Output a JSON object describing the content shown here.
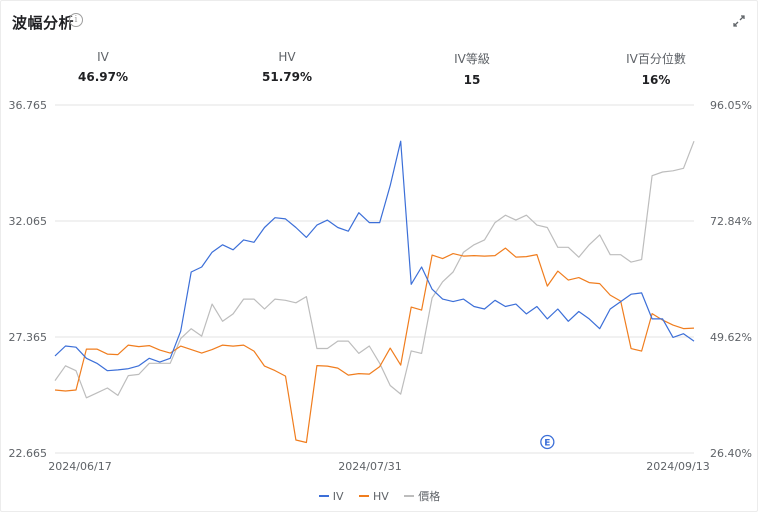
{
  "header": {
    "title": "波幅分析",
    "info_icon": "info-icon",
    "expand_icon": "expand-icon"
  },
  "metrics": [
    {
      "label": "IV",
      "value": "46.97%"
    },
    {
      "label": "HV",
      "value": "51.79%"
    },
    {
      "label": "IV等級",
      "value": "15"
    },
    {
      "label": "IV百分位數",
      "value": "16%"
    }
  ],
  "chart_data": {
    "type": "line",
    "left_axis": {
      "min": 22.665,
      "max": 36.765,
      "ticks": [
        "36.765",
        "32.065",
        "27.365",
        "22.665"
      ]
    },
    "right_axis": {
      "min": 26.4,
      "max": 96.05,
      "ticks": [
        "96.05%",
        "72.84%",
        "49.62%",
        "26.40%"
      ]
    },
    "x_ticks": [
      "2024/06/17",
      "2024/07/31",
      "2024/09/13"
    ],
    "earnings_marker": {
      "label": "E",
      "index": 47
    },
    "colors": {
      "IV": "#3c6fd8",
      "HV": "#f07d1e",
      "價格": "#bdbdbd"
    },
    "series": [
      {
        "name": "IV",
        "axis": "left",
        "values": [
          26.6,
          27.0,
          26.95,
          26.5,
          26.3,
          26.0,
          26.03,
          26.08,
          26.2,
          26.5,
          26.35,
          26.5,
          27.6,
          30.0,
          30.2,
          30.8,
          31.1,
          30.9,
          31.3,
          31.2,
          31.8,
          32.2,
          32.15,
          31.8,
          31.4,
          31.9,
          32.1,
          31.8,
          31.65,
          32.4,
          32.0,
          32.0,
          33.5,
          35.3,
          29.5,
          30.2,
          29.3,
          28.9,
          28.8,
          28.9,
          28.6,
          28.5,
          28.85,
          28.6,
          28.7,
          28.3,
          28.6,
          28.1,
          28.5,
          28.0,
          28.4,
          28.1,
          27.7,
          28.5,
          28.8,
          29.1,
          29.15,
          28.1,
          28.1,
          27.35,
          27.5,
          27.2
        ]
      },
      {
        "name": "HV",
        "axis": "right",
        "values": [
          39.0,
          38.8,
          39.0,
          47.2,
          47.2,
          46.2,
          46.1,
          48.0,
          47.7,
          47.9,
          47.0,
          46.4,
          47.8,
          47.1,
          46.4,
          47.1,
          48.0,
          47.8,
          48.0,
          46.8,
          43.8,
          42.9,
          41.8,
          29.0,
          28.5,
          43.9,
          43.8,
          43.4,
          42.0,
          42.3,
          42.2,
          43.7,
          47.4,
          44.0,
          55.6,
          55.0,
          66.0,
          65.3,
          66.3,
          65.8,
          65.9,
          65.8,
          65.9,
          67.4,
          65.6,
          65.7,
          66.1,
          59.8,
          62.8,
          61.0,
          61.5,
          60.5,
          60.3,
          58.0,
          56.8,
          47.3,
          46.8,
          54.3,
          53.0,
          52.0,
          51.3,
          51.4
        ]
      },
      {
        "name": "價格",
        "axis": "left",
        "values": [
          25.6,
          26.2,
          26.0,
          24.9,
          25.1,
          25.3,
          25.0,
          25.8,
          25.85,
          26.3,
          26.3,
          26.3,
          27.3,
          27.7,
          27.4,
          28.7,
          28.0,
          28.3,
          28.9,
          28.9,
          28.5,
          28.9,
          28.85,
          28.75,
          29.0,
          26.9,
          26.9,
          27.2,
          27.2,
          26.7,
          27.0,
          26.3,
          25.4,
          25.05,
          26.8,
          26.7,
          28.95,
          29.6,
          30.0,
          30.8,
          31.1,
          31.3,
          32.0,
          32.3,
          32.1,
          32.3,
          31.9,
          31.8,
          31.0,
          31.0,
          30.6,
          31.1,
          31.5,
          30.7,
          30.7,
          30.4,
          30.5,
          33.9,
          34.05,
          34.1,
          34.2,
          35.3
        ]
      }
    ]
  }
}
